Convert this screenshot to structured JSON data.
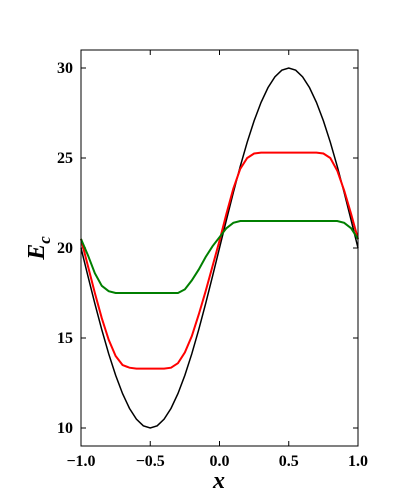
{
  "chart_data": {
    "type": "line",
    "xlabel": "x",
    "ylabel": "E",
    "ylabel_subscript": "c",
    "x": [
      -1,
      -0.95,
      -0.9,
      -0.85,
      -0.8,
      -0.75,
      -0.7,
      -0.65,
      -0.6,
      -0.55,
      -0.5,
      -0.45,
      -0.4,
      -0.35,
      -0.3,
      -0.25,
      -0.2,
      -0.15,
      -0.1,
      -0.05,
      0,
      0.05,
      0.1,
      0.15,
      0.2,
      0.25,
      0.3,
      0.35,
      0.4,
      0.45,
      0.5,
      0.55,
      0.6,
      0.65,
      0.7,
      0.75,
      0.8,
      0.85,
      0.9,
      0.95,
      1
    ],
    "series": [
      {
        "color": "#000000",
        "values": [
          20,
          18.44,
          16.91,
          15.46,
          14.12,
          12.93,
          11.91,
          11.09,
          10.49,
          10.12,
          10,
          10.12,
          10.49,
          11.09,
          11.91,
          12.93,
          14.12,
          15.46,
          16.91,
          18.44,
          20,
          21.56,
          23.09,
          24.54,
          25.88,
          27.07,
          28.09,
          28.91,
          29.51,
          29.88,
          30,
          29.88,
          29.51,
          28.91,
          28.09,
          27.07,
          25.88,
          24.54,
          23.09,
          21.56,
          20
        ]
      },
      {
        "color": "#ff0000",
        "values": [
          20.5,
          19.0,
          17.5,
          16.1,
          14.9,
          14.0,
          13.5,
          13.35,
          13.3,
          13.3,
          13.3,
          13.3,
          13.3,
          13.35,
          13.6,
          14.2,
          15.1,
          16.3,
          17.6,
          19.0,
          20.4,
          21.9,
          23.3,
          24.4,
          25.0,
          25.25,
          25.3,
          25.3,
          25.3,
          25.3,
          25.3,
          25.3,
          25.3,
          25.3,
          25.3,
          25.25,
          25.0,
          24.3,
          23.2,
          21.9,
          20.5
        ]
      },
      {
        "color": "#007f00",
        "values": [
          20.5,
          19.6,
          18.6,
          17.9,
          17.6,
          17.5,
          17.5,
          17.5,
          17.5,
          17.5,
          17.5,
          17.5,
          17.5,
          17.5,
          17.5,
          17.7,
          18.2,
          18.8,
          19.5,
          20.1,
          20.6,
          21.1,
          21.4,
          21.5,
          21.5,
          21.5,
          21.5,
          21.5,
          21.5,
          21.5,
          21.5,
          21.5,
          21.5,
          21.5,
          21.5,
          21.5,
          21.5,
          21.5,
          21.4,
          21.1,
          20.5
        ]
      }
    ],
    "xlim": [
      -1,
      1
    ],
    "xticks": [
      {
        "value": -1,
        "label": "−1.0"
      },
      0.5,
      {
        "value": 0,
        "label": "0.0"
      },
      {
        "value": 1,
        "label": "1.0"
      },
      {
        "value": -0.5,
        "label": "−0.5"
      }
    ],
    "ylim": [
      9,
      31
    ],
    "yticks": [
      10,
      15,
      20,
      25,
      30
    ],
    "grid": false
  }
}
